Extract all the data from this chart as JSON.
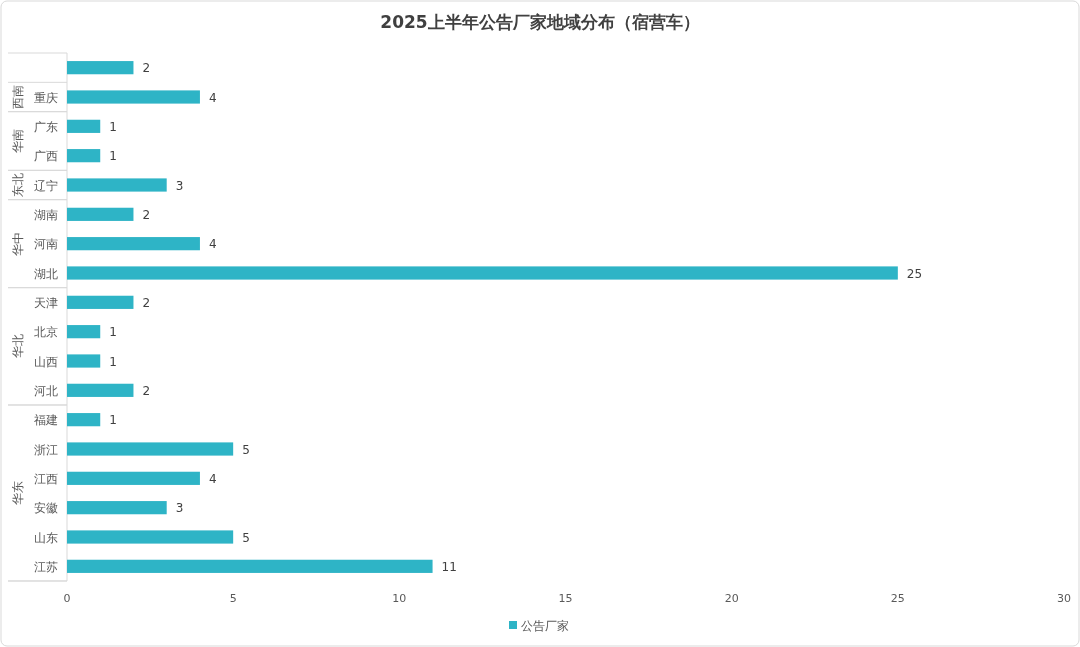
{
  "chart_data": {
    "type": "bar",
    "orientation": "horizontal",
    "title": "2025上半年公告厂家地域分布（宿营车）",
    "categories": [
      null,
      "重庆",
      "广东",
      "广西",
      "辽宁",
      "湖南",
      "河南",
      "湖北",
      "天津",
      "北京",
      "山西",
      "河北",
      "福建",
      "浙江",
      "江西",
      "安徽",
      "山东",
      "江苏"
    ],
    "series": [
      {
        "name": "公告厂家",
        "color": "#2eb4c6",
        "values": [
          2,
          4,
          1,
          1,
          3,
          2,
          4,
          25,
          2,
          1,
          1,
          2,
          1,
          5,
          4,
          3,
          5,
          11
        ]
      }
    ],
    "xlim": [
      0,
      30
    ],
    "xticks": [
      0,
      5,
      10,
      15,
      20,
      25,
      30
    ],
    "grid": false,
    "legend": "bottom",
    "data_labels": true,
    "annotations": [
      "西南",
      "华南",
      "东北",
      "华中",
      "华北",
      "华东"
    ]
  }
}
